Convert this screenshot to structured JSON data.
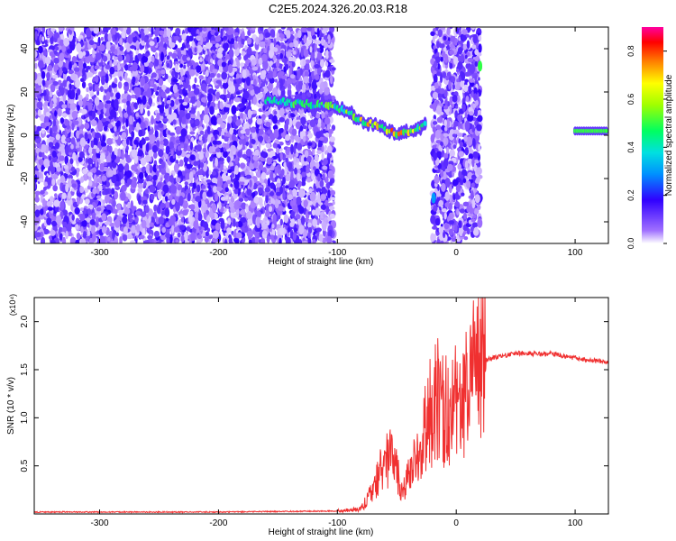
{
  "title": "C2E5.2024.326.20.03.R18",
  "colors": {
    "snr_line": "#f03030",
    "spectro_noise": "#7a1fe0",
    "spectro_strong": "#00ff60"
  },
  "chart_data": [
    {
      "type": "heatmap",
      "xlabel": "Height of straight line (km)",
      "ylabel": "Frequency (Hz)",
      "xlim": [
        -355,
        128
      ],
      "ylim": [
        -50,
        50
      ],
      "xticks": [
        "-300",
        "-200",
        "-100",
        "0",
        "100"
      ],
      "xtick_values": [
        -300,
        -200,
        -100,
        0,
        100
      ],
      "yticks": [
        "-40",
        "-20",
        "0",
        "20",
        "40"
      ],
      "ytick_values": [
        -40,
        -20,
        0,
        20,
        40
      ],
      "colorbar": {
        "label": "Normalized spectral amplitude",
        "range": [
          0,
          0.9
        ],
        "ticks": [
          "0.0",
          "0.2",
          "0.4",
          "0.6",
          "0.8"
        ],
        "tick_values": [
          0.0,
          0.2,
          0.4,
          0.6,
          0.8
        ]
      },
      "noise_regions_km": [
        [
          -355,
          -103
        ],
        [
          -20,
          20
        ]
      ],
      "signal_track": {
        "x": [
          -160,
          -140,
          -120,
          -100,
          -90,
          -80,
          -70,
          -60,
          -50,
          -40,
          -30,
          -25,
          25,
          60,
          100,
          128
        ],
        "freq": [
          16,
          15,
          14,
          13,
          10,
          7,
          5,
          3,
          1,
          1,
          4,
          7,
          2,
          2,
          2,
          2
        ],
        "amplitude": [
          0.45,
          0.5,
          0.5,
          0.55,
          0.6,
          0.65,
          0.7,
          0.7,
          0.75,
          0.7,
          0.6,
          0.5,
          0.9,
          0.5,
          0.5,
          0.5
        ]
      },
      "spikes": [
        {
          "x": -19,
          "freq": -29,
          "amplitude": 0.3
        },
        {
          "x": 20,
          "freq": 32,
          "amplitude": 0.5
        }
      ]
    },
    {
      "type": "line",
      "xlabel": "Height of straight line (km)",
      "ylabel": "SNR (10 * v/v)",
      "y_multiplier": "(x10⁴)",
      "xlim": [
        -355,
        128
      ],
      "ylim": [
        0,
        2.25
      ],
      "xticks": [
        "-300",
        "-200",
        "-100",
        "0",
        "100"
      ],
      "xtick_values": [
        -300,
        -200,
        -100,
        0,
        100
      ],
      "yticks": [
        "0.5",
        "1.0",
        "1.5",
        "2.0"
      ],
      "ytick_values": [
        0.5,
        1.0,
        1.5,
        2.0
      ],
      "series": [
        {
          "x": [
            -355,
            -200,
            -110,
            -100,
            -80,
            -70,
            -60,
            -55,
            -50,
            -45,
            -40,
            -35,
            -30,
            -25,
            -20,
            -15,
            -10,
            -5,
            0,
            5,
            10,
            15,
            20,
            25,
            30,
            40,
            50,
            60,
            70,
            80,
            90,
            100,
            110,
            128
          ],
          "y": [
            0.02,
            0.02,
            0.03,
            0.03,
            0.05,
            0.25,
            0.55,
            0.6,
            0.45,
            0.2,
            0.4,
            0.55,
            0.7,
            0.95,
            1.05,
            1.25,
            1.05,
            1.1,
            1.15,
            1.2,
            1.35,
            1.45,
            1.55,
            1.6,
            1.62,
            1.65,
            1.67,
            1.67,
            1.66,
            1.67,
            1.64,
            1.62,
            1.6,
            1.58
          ]
        }
      ]
    }
  ]
}
